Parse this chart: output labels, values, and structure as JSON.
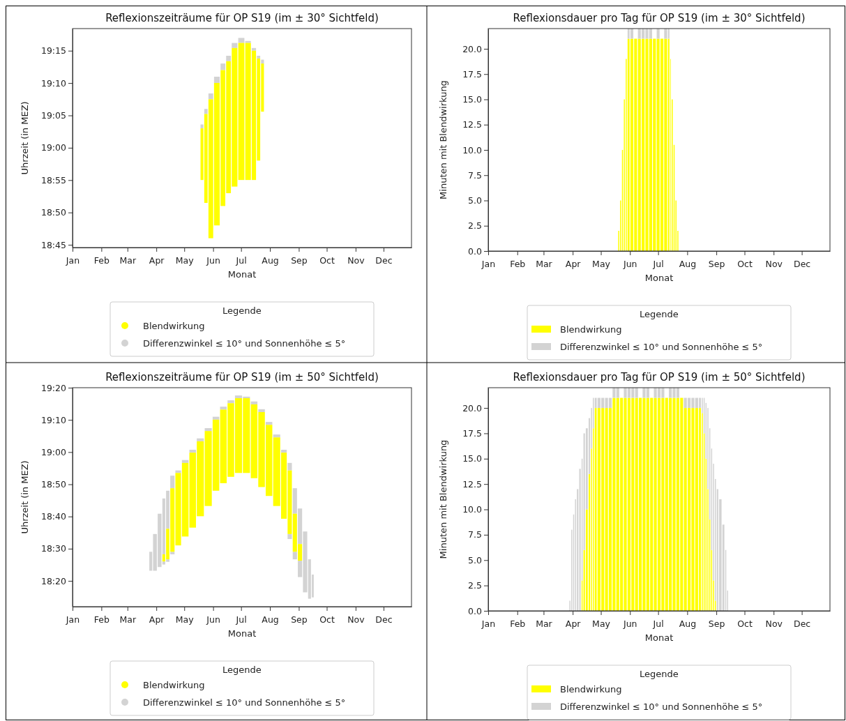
{
  "chart_data": [
    {
      "type": "bar",
      "title": "Reflexionszeiträume für OP S19 (im ± 30° Sichtfeld)",
      "xlabel": "Monat",
      "ylabel": "Uhrzeit (in MEZ)",
      "legend_title": "Legende",
      "legend": "bottom",
      "marker": "circle",
      "xlim": [
        "--01-01",
        "--12-31"
      ],
      "xticks": [
        {
          "value": "--01-01",
          "label": "Jan"
        },
        {
          "value": "--02-01",
          "label": "Feb"
        },
        {
          "value": "--03-01",
          "label": "Mar"
        },
        {
          "value": "--04-01",
          "label": "Apr"
        },
        {
          "value": "--05-01",
          "label": "May"
        },
        {
          "value": "--06-01",
          "label": "Jun"
        },
        {
          "value": "--07-01",
          "label": "Jul"
        },
        {
          "value": "--08-01",
          "label": "Aug"
        },
        {
          "value": "--09-01",
          "label": "Sep"
        },
        {
          "value": "--10-01",
          "label": "Oct"
        },
        {
          "value": "--11-01",
          "label": "Nov"
        },
        {
          "value": "--12-01",
          "label": "Dec"
        }
      ],
      "ylim": [
        18.743,
        19.307
      ],
      "yticks": [
        {
          "value": 18.75,
          "label": "18:45"
        },
        {
          "value": 18.8333,
          "label": "18:50"
        },
        {
          "value": 18.9167,
          "label": "18:55"
        },
        {
          "value": 19,
          "label": "19:00"
        },
        {
          "value": 19.0833,
          "label": "19:05"
        },
        {
          "value": 19.1667,
          "label": "19:10"
        },
        {
          "value": 19.25,
          "label": "19:15"
        }
      ],
      "series": [
        {
          "name": "Blendwirkung",
          "color": "#ffff00",
          "x": [
            "--05-20",
            "--05-24",
            "--05-29",
            "--06-05",
            "--06-12",
            "--06-17",
            "--06-24",
            "--07-01",
            "--07-09",
            "--07-15",
            "--07-20",
            "--07-24"
          ],
          "base": [
            18.917,
            18.858,
            18.767,
            18.8,
            18.85,
            18.883,
            18.9,
            18.917,
            18.917,
            18.917,
            18.967,
            19.093
          ],
          "values": [
            0.133,
            0.229,
            0.358,
            0.367,
            0.35,
            0.34,
            0.357,
            0.353,
            0.353,
            0.333,
            0.263,
            0.124
          ]
        },
        {
          "name": "Differenzwinkel ≤ 10° und Sonnenhöhe ≤ 5°",
          "color": "#d3d3d3",
          "x": [
            "--05-20",
            "--05-24",
            "--05-29",
            "--06-05",
            "--06-12",
            "--06-17",
            "--06-24",
            "--07-01",
            "--07-09",
            "--07-15",
            "--07-20",
            "--07-24"
          ],
          "base": [
            19.05,
            19.087,
            19.125,
            19.167,
            19.2,
            19.223,
            19.257,
            19.27,
            19.27,
            19.25,
            19.23,
            19.217
          ],
          "values": [
            0.01,
            0.013,
            0.015,
            0.016,
            0.017,
            0.014,
            0.013,
            0.013,
            0.005,
            0.007,
            0.007,
            0.01
          ]
        }
      ]
    },
    {
      "type": "bar",
      "stacked": true,
      "title": "Reflexionsdauer pro Tag für OP S19 (im ± 30° Sichtfeld)",
      "xlabel": "Monat",
      "ylabel": "Minuten mit Blendwirkung",
      "legend_title": "Legende",
      "legend": "bottom",
      "xlim": [
        "--01-01",
        "--12-31"
      ],
      "xticks": [
        {
          "value": "--01-01",
          "label": "Jan"
        },
        {
          "value": "--02-01",
          "label": "Feb"
        },
        {
          "value": "--03-01",
          "label": "Mar"
        },
        {
          "value": "--04-01",
          "label": "Apr"
        },
        {
          "value": "--05-01",
          "label": "May"
        },
        {
          "value": "--06-01",
          "label": "Jun"
        },
        {
          "value": "--07-01",
          "label": "Jul"
        },
        {
          "value": "--08-01",
          "label": "Aug"
        },
        {
          "value": "--09-01",
          "label": "Sep"
        },
        {
          "value": "--10-01",
          "label": "Oct"
        },
        {
          "value": "--11-01",
          "label": "Nov"
        },
        {
          "value": "--12-01",
          "label": "Dec"
        }
      ],
      "ylim": [
        0,
        22
      ],
      "yticks": [
        {
          "value": 0,
          "label": "0.0"
        },
        {
          "value": 2.5,
          "label": "2.5"
        },
        {
          "value": 5,
          "label": "5.0"
        },
        {
          "value": 7.5,
          "label": "7.5"
        },
        {
          "value": 10,
          "label": "10.0"
        },
        {
          "value": 12.5,
          "label": "12.5"
        },
        {
          "value": 15,
          "label": "15.0"
        },
        {
          "value": 17.5,
          "label": "17.5"
        },
        {
          "value": 20,
          "label": "20.0"
        }
      ],
      "x": [
        "--05-20",
        "--05-22",
        "--05-24",
        "--05-26",
        "--05-28",
        "--05-30",
        "--06-03",
        "--06-07",
        "--06-11",
        "--06-15",
        "--06-19",
        "--06-23",
        "--06-27",
        "--07-01",
        "--07-05",
        "--07-09",
        "--07-13",
        "--07-14",
        "--07-16",
        "--07-18",
        "--07-20",
        "--07-22"
      ],
      "series": [
        {
          "name": "Blendwirkung",
          "color": "#ffff00",
          "values": [
            2,
            5,
            10,
            15,
            19,
            21,
            21,
            21,
            21,
            21,
            21,
            21,
            21,
            21,
            21,
            21,
            21,
            19,
            15,
            10.5,
            5,
            2
          ]
        },
        {
          "name": "Differenzwinkel ≤ 10° und Sonnenhöhe ≤ 5°",
          "color": "#d3d3d3",
          "values": [
            0,
            0,
            0,
            0,
            0,
            1,
            1,
            0,
            1,
            1,
            1,
            1,
            0,
            1,
            0,
            1,
            1,
            0,
            0,
            0,
            0,
            0
          ]
        }
      ]
    },
    {
      "type": "bar",
      "title": "Reflexionszeiträume für OP S19 (im ± 50° Sichtfeld)",
      "xlabel": "Monat",
      "ylabel": "Uhrzeit (in MEZ)",
      "legend_title": "Legende",
      "legend": "bottom",
      "marker": "circle",
      "xlim": [
        "--01-01",
        "--12-31"
      ],
      "xticks": [
        {
          "value": "--01-01",
          "label": "Jan"
        },
        {
          "value": "--02-01",
          "label": "Feb"
        },
        {
          "value": "--03-01",
          "label": "Mar"
        },
        {
          "value": "--04-01",
          "label": "Apr"
        },
        {
          "value": "--05-01",
          "label": "May"
        },
        {
          "value": "--06-01",
          "label": "Jun"
        },
        {
          "value": "--07-01",
          "label": "Jul"
        },
        {
          "value": "--08-01",
          "label": "Aug"
        },
        {
          "value": "--09-01",
          "label": "Sep"
        },
        {
          "value": "--10-01",
          "label": "Oct"
        },
        {
          "value": "--11-01",
          "label": "Nov"
        },
        {
          "value": "--12-01",
          "label": "Dec"
        }
      ],
      "ylim": [
        18.2,
        19.3333
      ],
      "yticks": [
        {
          "value": 18.3333,
          "label": "18:20"
        },
        {
          "value": 18.5,
          "label": "18:30"
        },
        {
          "value": 18.6667,
          "label": "18:40"
        },
        {
          "value": 18.8333,
          "label": "18:50"
        },
        {
          "value": 19,
          "label": "19:00"
        },
        {
          "value": 19.1667,
          "label": "19:10"
        },
        {
          "value": 19.3333,
          "label": "19:20"
        }
      ],
      "series": [
        {
          "name": "Blendwirkung",
          "color": "#ffff00",
          "x": [
            "--04-09",
            "--04-13",
            "--04-18",
            "--04-24",
            "--05-02",
            "--05-10",
            "--05-18",
            "--05-27",
            "--06-04",
            "--06-12",
            "--06-20",
            "--06-28",
            "--07-07",
            "--07-15",
            "--07-23",
            "--07-31",
            "--08-08",
            "--08-17",
            "--08-22",
            "--08-28",
            "--09-02"
          ],
          "base": [
            18.434,
            18.445,
            18.484,
            18.517,
            18.563,
            18.609,
            18.668,
            18.721,
            18.8,
            18.839,
            18.872,
            18.892,
            18.892,
            18.865,
            18.819,
            18.773,
            18.721,
            18.655,
            18.576,
            18.484,
            18.438
          ],
          "values": [
            0.037,
            0.158,
            0.329,
            0.375,
            0.381,
            0.388,
            0.388,
            0.388,
            0.368,
            0.381,
            0.381,
            0.387,
            0.387,
            0.382,
            0.388,
            0.368,
            0.355,
            0.342,
            0.329,
            0.197,
            0.086
          ]
        },
        {
          "name": "Differenzwinkel ≤ 10° und Sonnenhöhe ≤ 5°",
          "color": "#d3d3d3",
          "x": [
            "--03-26",
            "--03-30",
            "--04-05",
            "--04-09",
            "--04-13",
            "--04-18",
            "--04-24",
            "--05-02",
            "--05-10",
            "--05-18",
            "--05-27",
            "--06-04",
            "--06-12",
            "--06-20",
            "--06-28",
            "--07-07",
            "--07-15",
            "--07-23",
            "--07-31",
            "--08-08",
            "--08-17",
            "--08-22",
            "--08-28",
            "--09-02",
            "--09-08",
            "--09-13",
            "--09-16"
          ],
          "base": [
            18.386,
            18.386,
            18.405,
            18.471,
            18.603,
            18.813,
            18.892,
            18.944,
            18.997,
            19.056,
            19.109,
            19.168,
            19.22,
            19.253,
            19.279,
            19.279,
            19.247,
            19.207,
            19.141,
            19.076,
            18.997,
            18.905,
            18.681,
            18.524,
            18.274,
            18.241,
            18.248
          ],
          "values": [
            0.098,
            0.19,
            0.276,
            0.289,
            0.197,
            0.065,
            0.013,
            0.015,
            0.015,
            0.015,
            0.015,
            0.015,
            0.015,
            0.015,
            0.014,
            0.008,
            0.015,
            0.015,
            0.015,
            0.015,
            0.015,
            0.039,
            0.132,
            0.184,
            0.315,
            0.204,
            0.118
          ]
        },
        {
          "color": "#d3d3d3",
          "x": [
            "--04-09",
            "--04-13",
            "--04-18",
            "--08-22",
            "--08-28",
            "--09-02"
          ],
          "base": [
            18.418,
            18.432,
            18.471,
            18.55,
            18.445,
            18.353
          ],
          "values": [
            0.016,
            0.013,
            0.013,
            0.026,
            0.039,
            0.085
          ]
        }
      ]
    },
    {
      "type": "bar",
      "stacked": true,
      "title": "Reflexionsdauer pro Tag für OP S19 (im ± 50° Sichtfeld)",
      "xlabel": "Monat",
      "ylabel": "Minuten mit Blendwirkung",
      "legend_title": "Legende",
      "legend": "bottom",
      "xlim": [
        "--01-01",
        "--12-31"
      ],
      "xticks": [
        {
          "value": "--01-01",
          "label": "Jan"
        },
        {
          "value": "--02-01",
          "label": "Feb"
        },
        {
          "value": "--03-01",
          "label": "Mar"
        },
        {
          "value": "--04-01",
          "label": "Apr"
        },
        {
          "value": "--05-01",
          "label": "May"
        },
        {
          "value": "--06-01",
          "label": "Jun"
        },
        {
          "value": "--07-01",
          "label": "Jul"
        },
        {
          "value": "--08-01",
          "label": "Aug"
        },
        {
          "value": "--09-01",
          "label": "Sep"
        },
        {
          "value": "--10-01",
          "label": "Oct"
        },
        {
          "value": "--11-01",
          "label": "Nov"
        },
        {
          "value": "--12-01",
          "label": "Dec"
        }
      ],
      "ylim": [
        0,
        22
      ],
      "yticks": [
        {
          "value": 0,
          "label": "0.0"
        },
        {
          "value": 2.5,
          "label": "2.5"
        },
        {
          "value": 5,
          "label": "5.0"
        },
        {
          "value": 7.5,
          "label": "7.5"
        },
        {
          "value": 10,
          "label": "10.0"
        },
        {
          "value": 12.5,
          "label": "12.5"
        },
        {
          "value": 15,
          "label": "15.0"
        },
        {
          "value": 17.5,
          "label": "17.5"
        },
        {
          "value": 20,
          "label": "20.0"
        }
      ],
      "x": [
        "--03-29",
        "--03-31",
        "--04-02",
        "--04-04",
        "--04-06",
        "--04-09",
        "--04-11",
        "--04-13",
        "--04-16",
        "--04-19",
        "--04-21",
        "--04-23",
        "--04-25",
        "--04-29",
        "--05-03",
        "--05-07",
        "--05-11",
        "--05-15",
        "--05-19",
        "--05-23",
        "--05-27",
        "--05-31",
        "--06-04",
        "--06-08",
        "--06-12",
        "--06-16",
        "--06-20",
        "--06-24",
        "--06-28",
        "--07-02",
        "--07-06",
        "--07-10",
        "--07-14",
        "--07-18",
        "--07-22",
        "--07-26",
        "--07-30",
        "--08-03",
        "--08-07",
        "--08-11",
        "--08-15",
        "--08-17",
        "--08-19",
        "--08-21",
        "--08-23",
        "--08-25",
        "--08-27",
        "--08-29",
        "--08-31",
        "--09-02",
        "--09-05",
        "--09-09",
        "--09-11",
        "--09-13"
      ],
      "series": [
        {
          "name": "Blendwirkung",
          "color": "#ffff00",
          "values": [
            0,
            0,
            0,
            0,
            0,
            0,
            3,
            6,
            10,
            13.5,
            16,
            18,
            20,
            20,
            20,
            20,
            20,
            21,
            21,
            21,
            21,
            21,
            21,
            21,
            21,
            21,
            21,
            21,
            21,
            21,
            21,
            21,
            21,
            21,
            21,
            21,
            20,
            20,
            20,
            20,
            20,
            19.5,
            17.5,
            15,
            12,
            9,
            6,
            3,
            1,
            0,
            0,
            0,
            0,
            0
          ]
        },
        {
          "name": "Differenzwinkel ≤ 10° und Sonnenhöhe ≤ 5°",
          "color": "#d3d3d3",
          "values": [
            1,
            8,
            9.5,
            11,
            12,
            14,
            12,
            11.5,
            8,
            5.5,
            4,
            3,
            1,
            1,
            1,
            1,
            1,
            1,
            1,
            0,
            1,
            1,
            1,
            1,
            0,
            1,
            1,
            0,
            1,
            1,
            1,
            0,
            1,
            1,
            1,
            0,
            1,
            1,
            1,
            1,
            1,
            1.5,
            3.5,
            5.5,
            8,
            9,
            10,
            11.5,
            12,
            12,
            11,
            8.5,
            6,
            2
          ]
        }
      ]
    }
  ]
}
